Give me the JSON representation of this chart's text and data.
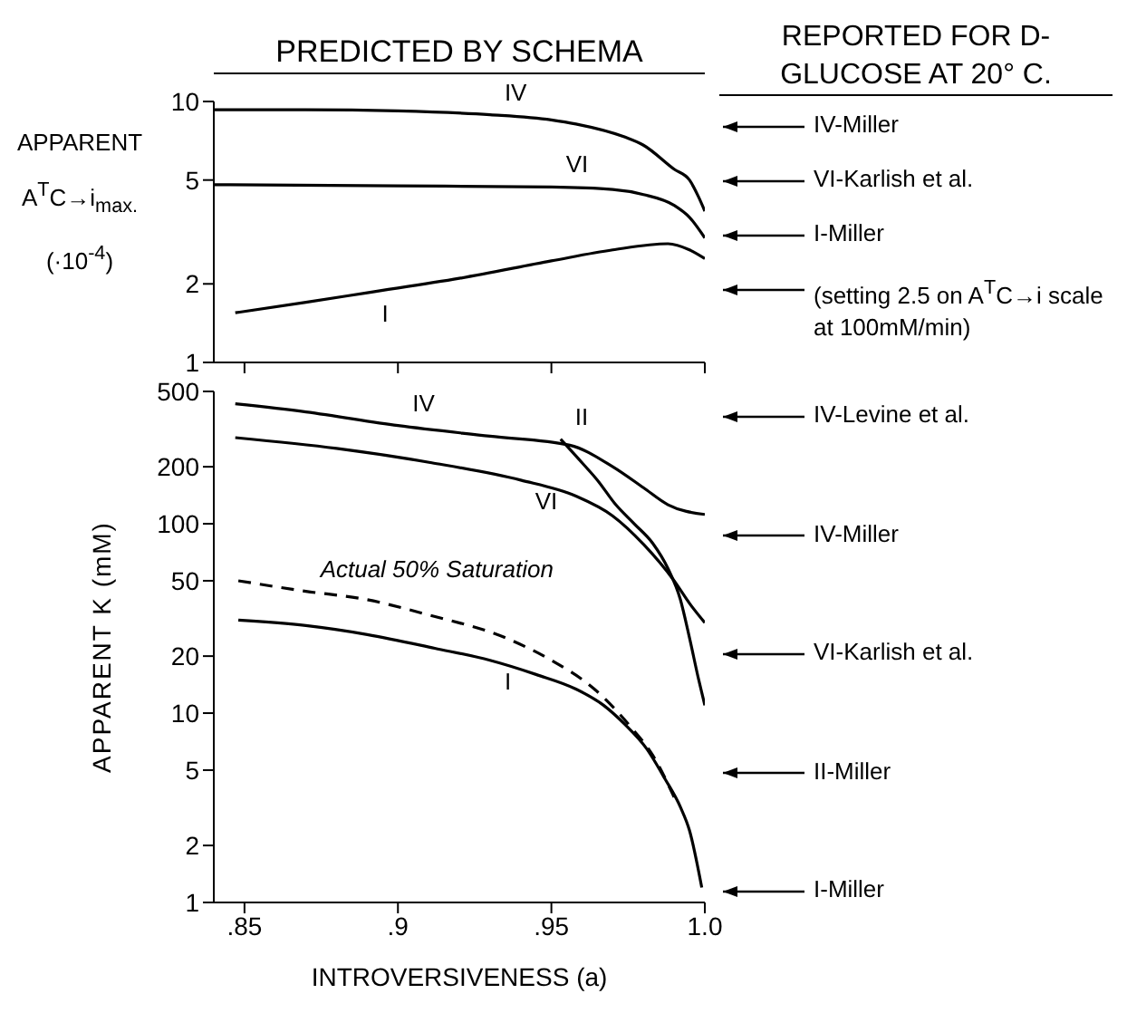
{
  "chart_data": [
    {
      "type": "line",
      "title": "PREDICTED BY SCHEMA",
      "ylabel": "APPARENT A$^{T}$C→i$_{max.}$ (·10$^{-4}$)",
      "log": "y",
      "xlim": [
        0.84,
        1.0
      ],
      "xticks": [
        0.85,
        0.9,
        0.95,
        1.0
      ],
      "ylim": [
        1,
        10
      ],
      "yticks": [
        1,
        2,
        5,
        10
      ],
      "tick_labels": "y",
      "grid": false,
      "legend": false,
      "marker": "none",
      "series": [
        {
          "name": "IV",
          "color": "#000000",
          "x": [
            0.84,
            0.87,
            0.9,
            0.93,
            0.95,
            0.958,
            0.974,
            0.98,
            0.99,
            0.995,
            0.998,
            1.0
          ],
          "values": [
            9.3,
            9.3,
            9.2,
            8.9,
            8.5,
            8.2,
            7.3,
            6.8,
            5.5,
            5.0,
            4.3,
            3.8
          ]
        },
        {
          "name": "VI",
          "color": "#000000",
          "x": [
            0.84,
            0.9,
            0.95,
            0.97,
            0.98,
            0.99,
            0.995,
            1.0
          ],
          "values": [
            4.8,
            4.75,
            4.7,
            4.6,
            4.4,
            4.0,
            3.6,
            3.0
          ]
        },
        {
          "name": "I",
          "color": "#000000",
          "x": [
            0.847,
            0.87,
            0.89,
            0.92,
            0.95,
            0.97,
            0.988,
            0.995,
            1.0
          ],
          "values": [
            1.55,
            1.7,
            1.85,
            2.1,
            2.45,
            2.7,
            2.85,
            2.7,
            2.5
          ]
        }
      ],
      "annotations": [
        "REPORTED FOR D-GLUCOSE AT 20° C.",
        "IV-Miller",
        "VI-Karlish et al.",
        "I-Miller",
        "(setting 2.5 on A$^{T}$C→i scale at 100mM/min)"
      ]
    },
    {
      "type": "line",
      "xlabel": "INTROVERSIVENESS (a)",
      "ylabel": "APPARENT K (mM)",
      "log": "y",
      "xlim": [
        0.84,
        1.0
      ],
      "xticks": [
        {
          "value": 0.85,
          "label": ".85"
        },
        {
          "value": 0.9,
          "label": ".9"
        },
        {
          "value": 0.95,
          "label": ".95"
        },
        {
          "value": 1.0,
          "label": "1.0"
        }
      ],
      "ylim": [
        1,
        500
      ],
      "yticks": [
        1,
        2,
        5,
        10,
        20,
        50,
        100,
        200,
        500
      ],
      "grid": false,
      "legend": false,
      "marker": "none",
      "series": [
        {
          "name": "IV",
          "color": "#000000",
          "x": [
            0.847,
            0.87,
            0.9,
            0.93,
            0.956,
            0.97,
            0.98,
            0.988,
            1.0
          ],
          "values": [
            430,
            390,
            330,
            290,
            260,
            200,
            155,
            126,
            112
          ]
        },
        {
          "name": "VI",
          "color": "#000000",
          "x": [
            0.847,
            0.88,
            0.911,
            0.94,
            0.958,
            0.97,
            0.98,
            0.99,
            0.995,
            1.0
          ],
          "values": [
            285,
            250,
            210,
            170,
            140,
            110,
            78,
            50,
            38,
            30
          ]
        },
        {
          "name": "II",
          "color": "#000000",
          "x": [
            0.953,
            0.96,
            0.965,
            0.971,
            0.977,
            0.983,
            0.988,
            0.992,
            0.995,
            0.998,
            1.0
          ],
          "values": [
            280,
            210,
            170,
            126,
            100,
            79,
            58,
            40,
            25,
            15,
            11
          ]
        },
        {
          "name": "I",
          "color": "#000000",
          "x": [
            0.848,
            0.87,
            0.89,
            0.912,
            0.93,
            0.945,
            0.958,
            0.967,
            0.974,
            0.981,
            0.987,
            0.992,
            0.995,
            0.999
          ],
          "values": [
            31,
            29,
            26,
            22,
            19,
            16,
            13.4,
            11,
            8.7,
            6.5,
            4.5,
            3.2,
            2.4,
            1.2
          ]
        },
        {
          "name": "Actual 50% Saturation",
          "color": "#000000",
          "line_style": "dashed",
          "x": [
            0.848,
            0.87,
            0.889,
            0.91,
            0.935,
            0.95,
            0.964,
            0.976,
            0.983,
            0.99
          ],
          "values": [
            50,
            44,
            40,
            33,
            25,
            19,
            13.4,
            8.4,
            6,
            3.6
          ]
        }
      ],
      "annotations": [
        "IV-Levine et al.",
        "IV-Miller",
        "VI-Karlish et al.",
        "II-Miller",
        "I-Miller"
      ]
    }
  ]
}
